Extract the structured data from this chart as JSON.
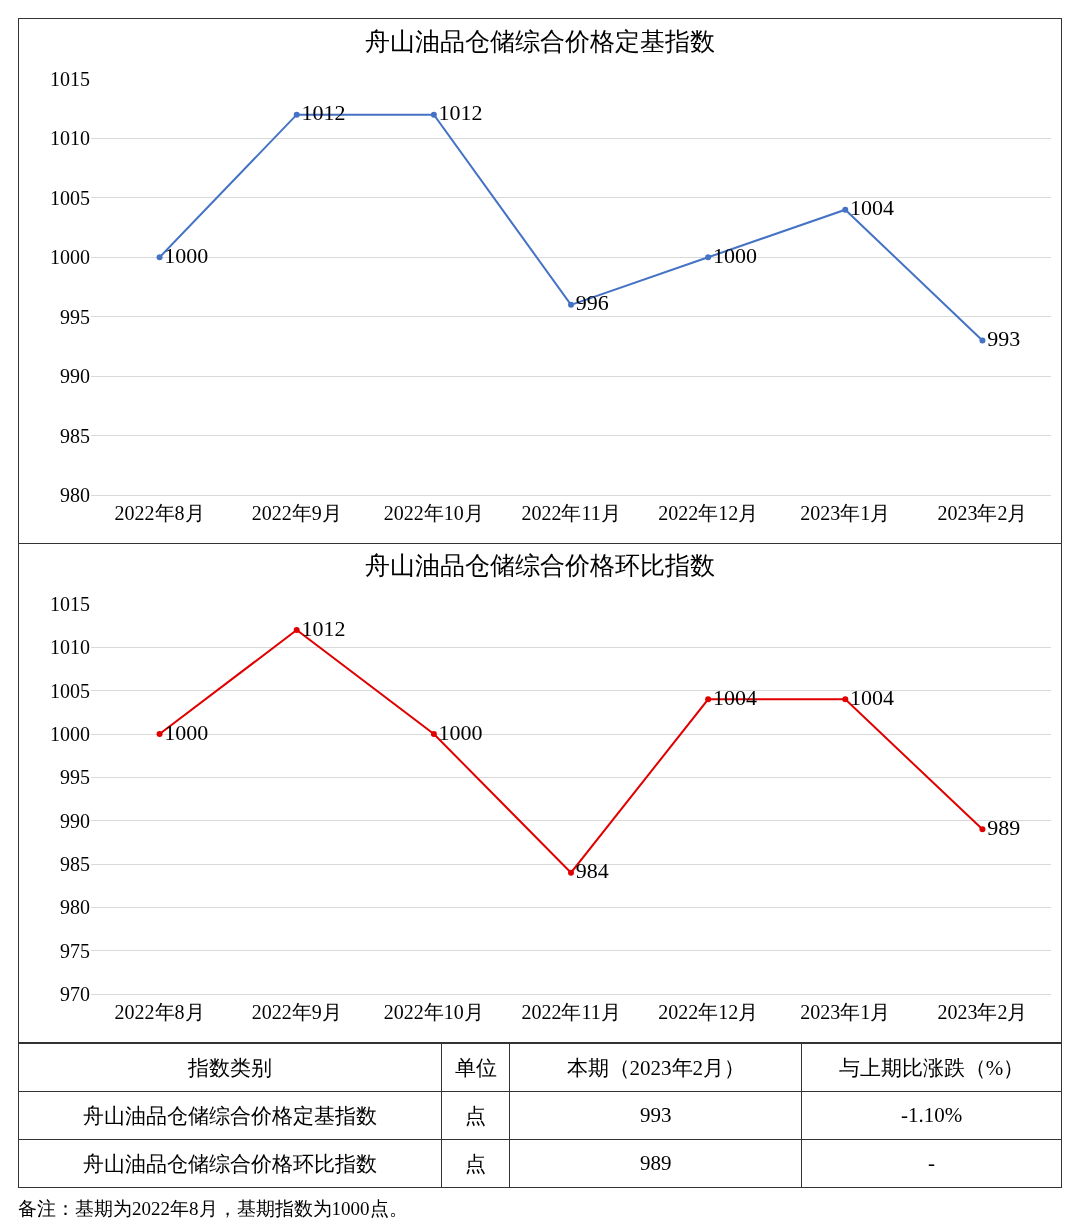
{
  "chart_data": [
    {
      "type": "line",
      "title": "舟山油品仓储综合价格定基指数",
      "categories": [
        "2022年8月",
        "2022年9月",
        "2022年10月",
        "2022年11月",
        "2022年12月",
        "2023年1月",
        "2023年2月"
      ],
      "series": [
        {
          "color": "#4472c4",
          "values": [
            1000,
            1012,
            1012,
            996,
            1000,
            1004,
            993
          ]
        }
      ],
      "ylim": [
        980,
        1015
      ],
      "yticks": [
        980,
        985,
        990,
        995,
        1000,
        1005,
        1010,
        1015
      ],
      "grid": "y",
      "marker": "circle",
      "data_labels": true
    },
    {
      "type": "line",
      "title": "舟山油品仓储综合价格环比指数",
      "categories": [
        "2022年8月",
        "2022年9月",
        "2022年10月",
        "2022年11月",
        "2022年12月",
        "2023年1月",
        "2023年2月"
      ],
      "series": [
        {
          "color": "#e00000",
          "values": [
            1000,
            1012,
            1000,
            984,
            1004,
            1004,
            989
          ]
        }
      ],
      "ylim": [
        970,
        1015
      ],
      "yticks": [
        970,
        975,
        980,
        985,
        990,
        995,
        1000,
        1005,
        1010,
        1015
      ],
      "grid": "y",
      "marker": "circle",
      "data_labels": true
    },
    {
      "type": "other",
      "annotations": [
        "指数类别",
        "单位",
        "本期（2023年2月）",
        "与上期比涨跌（%）",
        "舟山油品仓储综合价格定基指数",
        "点",
        "993",
        "-1.10%",
        "舟山油品仓储综合价格环比指数",
        "点",
        "989",
        "-",
        "备注：基期为2022年8月，基期指数为1000点。"
      ]
    }
  ]
}
